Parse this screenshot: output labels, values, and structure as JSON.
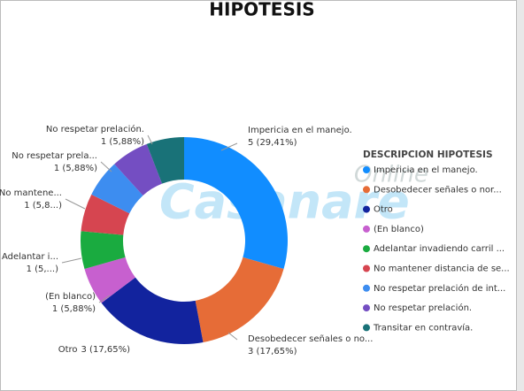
{
  "chart_data": {
    "type": "donut",
    "title": "HIPOTESIS",
    "legend_title": "DESCRIPCION HIPOTESIS",
    "watermark": [
      "Online",
      "Casanare"
    ],
    "categories": [
      "Impericia en el manejo.",
      "Desobedecer señales o nor...",
      "Otro",
      "(En blanco)",
      "Adelantar invadiendo carril ...",
      "No mantener distancia de se...",
      "No respetar prelación de int...",
      "No respetar prelación.",
      "Transitar en contravía."
    ],
    "slice_labels": [
      "Impericia en el manejo.",
      "Desobedecer señales o no...",
      "Otro",
      "(En blanco)",
      "Adelantar i...",
      "No mantene...",
      "No respetar prela...",
      "No respetar prelación.",
      null
    ],
    "values": [
      5,
      3,
      3,
      1,
      1,
      1,
      1,
      1,
      1
    ],
    "value_labels": [
      "5 (29,41%)",
      "3 (17,65%)",
      "3 (17,65%)",
      "1 (5,88%)",
      "1 (5,...)",
      "1 (5,8...)",
      "1 (5,88%)",
      "1 (5,88%)",
      null
    ],
    "colors": [
      "#118DFF",
      "#E66C37",
      "#12239E",
      "#C760CF",
      "#1AAB40",
      "#D64550",
      "#3D8DF0",
      "#744EC2",
      "#197278"
    ],
    "legend": "right"
  }
}
